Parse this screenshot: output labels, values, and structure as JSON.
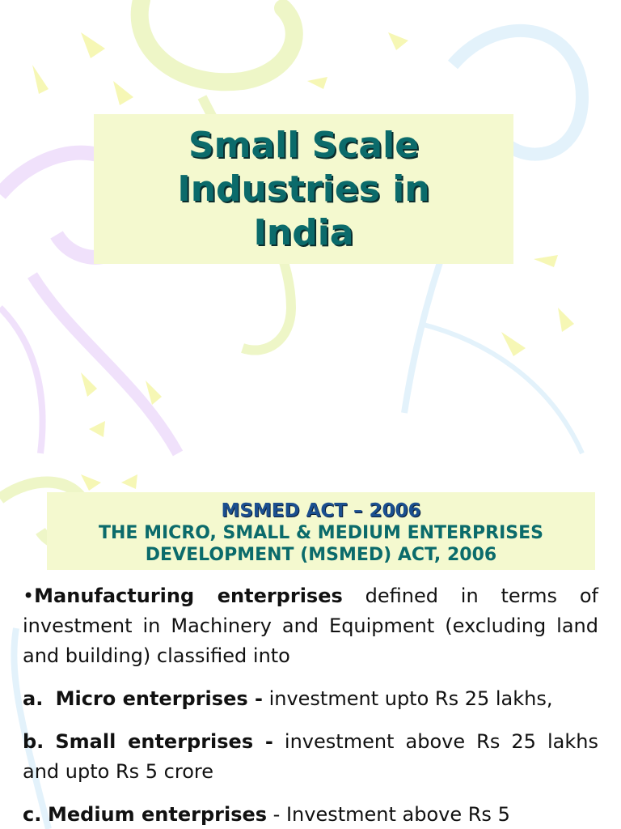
{
  "slide1": {
    "title_line1": "Small Scale",
    "title_line2": "Industries in",
    "title_line3": "India"
  },
  "slide2": {
    "act_title": "MSMED ACT – 2006",
    "act_sub_line1": "THE MICRO, SMALL & MEDIUM ENTERPRISES",
    "act_sub_line2": "DEVELOPMENT (MSMED) ACT, 2006",
    "intro": {
      "bullet": "•",
      "bold": "Manufacturing enterprises",
      "text": " defined in terms of investment in Machinery and Equipment (excluding land and building) classified into"
    },
    "items": [
      {
        "marker": "a.",
        "bold": "Micro enterprises -",
        "text": " investment upto Rs 25 lakhs,"
      },
      {
        "marker": "b.",
        "bold": "Small enterprises -",
        "text": " investment above  Rs 25 lakhs and upto Rs 5 crore"
      },
      {
        "marker": "c.",
        "bold": "Medium enterprises",
        "text": " - Investment  above Rs 5"
      }
    ]
  },
  "colors": {
    "title_teal": "#0b6b6b",
    "act_blue": "#1b4f8f",
    "box_bg": "#f4f9cf"
  }
}
